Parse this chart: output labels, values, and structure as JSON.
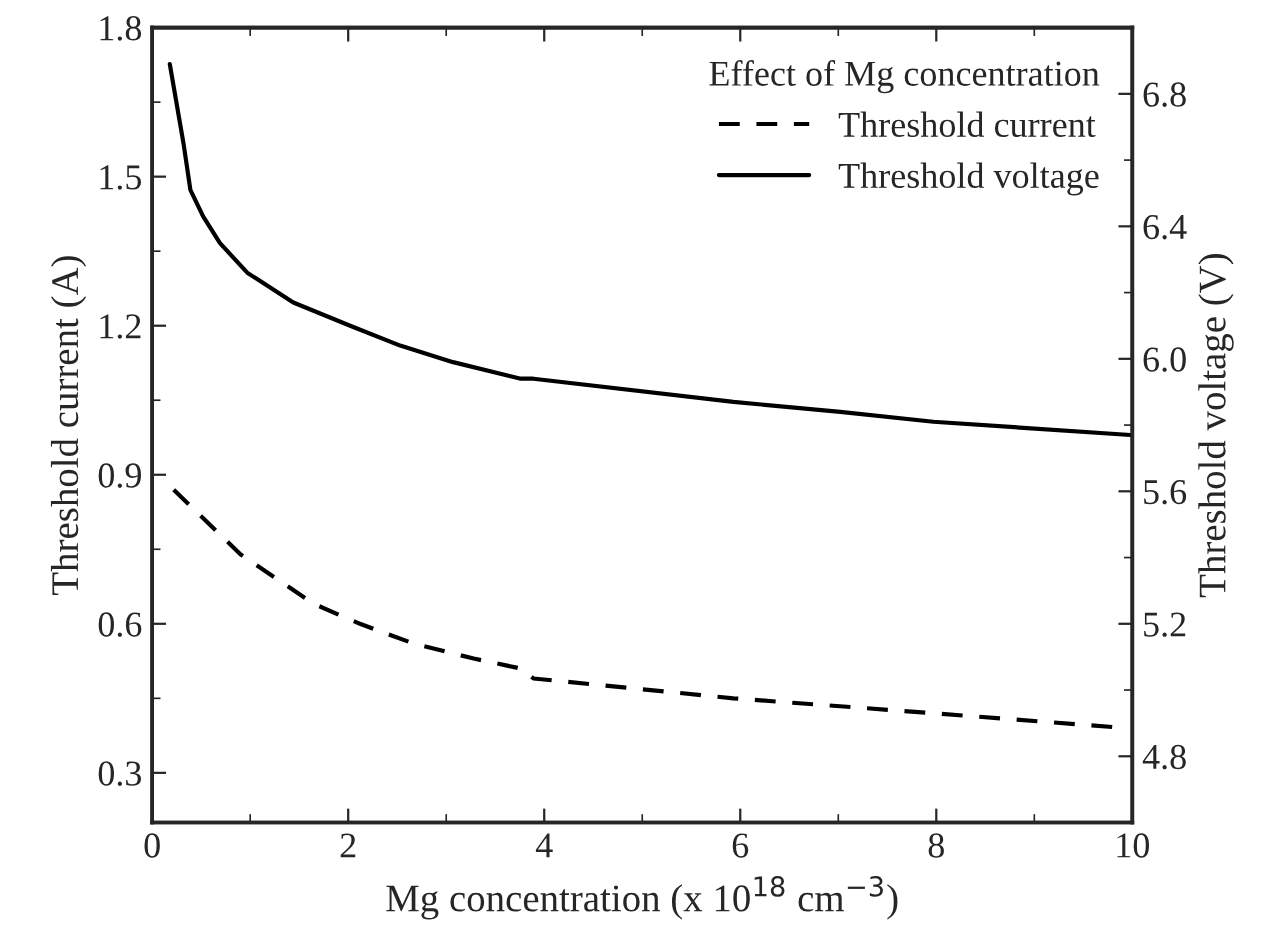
{
  "chart_data": {
    "type": "line",
    "xlabel": "Mg concentration (x 10$^{18}$ cm$^{−3}$)",
    "ylabel": "Threshold current (A)",
    "y2label": "Threshold voltage (V)",
    "legend_title": "Effect of Mg concentration",
    "legend": "top right",
    "grid": false,
    "xlim": [
      0,
      10
    ],
    "xticks": [
      0,
      2,
      4,
      6,
      8,
      10
    ],
    "ylim": [
      0.2,
      1.8
    ],
    "yticks": [
      0.3,
      0.6,
      0.9,
      1.2,
      1.5,
      1.8
    ],
    "y2lim": [
      4.6,
      7.0
    ],
    "y2ticks": [
      4.8,
      5.2,
      5.6,
      {
        "value": 6,
        "label": "6.0"
      },
      6.4,
      6.8
    ],
    "series": [
      {
        "name": "Threshold current",
        "color": "#000000",
        "line_style": "dashed",
        "x": [
          0.22,
          0.69,
          0.9,
          1.65,
          2.12,
          2.67,
          3.28,
          3.76,
          3.89,
          5.93,
          7.97,
          9.94
        ],
        "values": [
          0.87,
          0.78,
          0.74,
          0.64,
          0.6,
          0.56,
          0.53,
          0.51,
          0.49,
          0.45,
          0.42,
          0.39
        ]
      },
      {
        "name": "Threshold voltage",
        "color": "#000000",
        "line_style": "solid",
        "axis": "y2",
        "x": [
          0.18,
          0.32,
          0.39,
          0.52,
          0.69,
          0.97,
          1.44,
          2.02,
          2.53,
          3.07,
          3.76,
          3.89,
          5.93,
          7.02,
          7.97,
          9.98
        ],
        "values": [
          6.89,
          6.65,
          6.51,
          6.43,
          6.35,
          6.26,
          6.17,
          6.1,
          6.04,
          5.99,
          5.94,
          5.94,
          5.87,
          5.84,
          5.81,
          5.77
        ]
      }
    ]
  }
}
